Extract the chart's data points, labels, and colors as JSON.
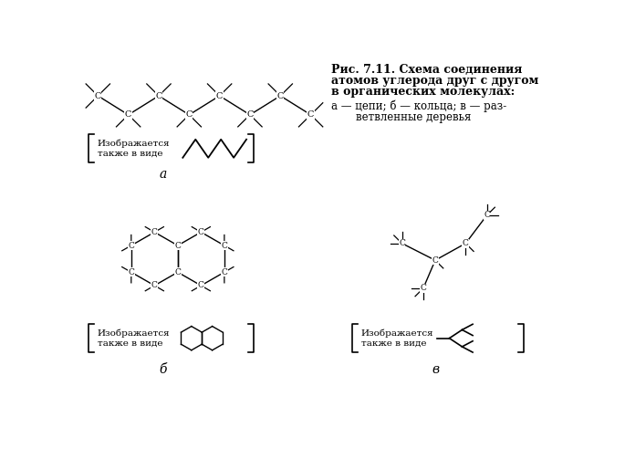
{
  "title_line1": "Рис. 7.11. Схема соединения",
  "title_line2": "атомов углерода друг с другом",
  "title_line3": "в органических молекулах:",
  "title_line4": "а — цепи; б — кольца; в — раз-",
  "title_line5": "ветвленные деревья",
  "label_a": "а",
  "label_b": "б",
  "label_v": "в",
  "also_text": "Изображается\nтакже в виде",
  "bg_color": "#ffffff",
  "line_color": "#000000"
}
